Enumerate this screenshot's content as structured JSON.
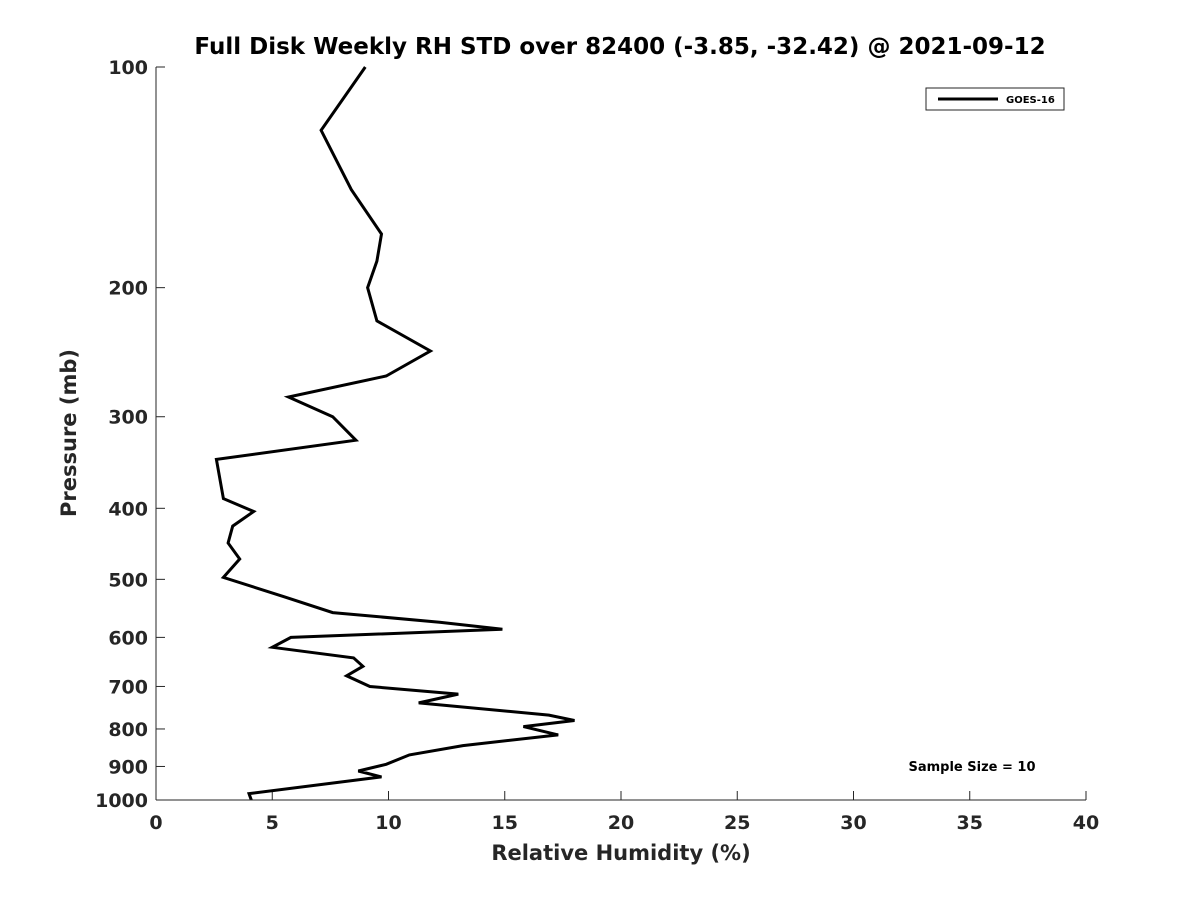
{
  "chart_data": {
    "type": "line",
    "title": "Full Disk Weekly RH STD over 82400 (-3.85, -32.42) @ 2021-09-12",
    "xlabel": "Relative Humidity (%)",
    "ylabel": "Pressure (mb)",
    "xlim": [
      0,
      40
    ],
    "ylim": [
      100,
      1000
    ],
    "y_scale": "log",
    "y_reversed": true,
    "x_ticks": [
      0,
      5,
      10,
      15,
      20,
      25,
      30,
      35,
      40
    ],
    "y_ticks": [
      100,
      200,
      300,
      400,
      500,
      600,
      700,
      800,
      900,
      1000
    ],
    "grid": false,
    "legend_position": "top-right",
    "annotation": "Sample Size = 10",
    "series": [
      {
        "name": "GOES-16",
        "color": "#000000",
        "points": [
          [
            9.0,
            100
          ],
          [
            7.1,
            122
          ],
          [
            8.4,
            147
          ],
          [
            9.7,
            169
          ],
          [
            9.5,
            184
          ],
          [
            9.1,
            200
          ],
          [
            9.5,
            222
          ],
          [
            11.8,
            244
          ],
          [
            9.9,
            264
          ],
          [
            5.7,
            282
          ],
          [
            7.6,
            300
          ],
          [
            8.6,
            323
          ],
          [
            2.6,
            343
          ],
          [
            2.9,
            388
          ],
          [
            4.2,
            404
          ],
          [
            3.3,
            423
          ],
          [
            3.1,
            446
          ],
          [
            3.6,
            469
          ],
          [
            2.9,
            497
          ],
          [
            5.5,
            528
          ],
          [
            7.6,
            555
          ],
          [
            12.2,
            572
          ],
          [
            14.9,
            585
          ],
          [
            5.8,
            600
          ],
          [
            5.0,
            619
          ],
          [
            8.5,
            640
          ],
          [
            8.9,
            657
          ],
          [
            8.2,
            677
          ],
          [
            9.2,
            700
          ],
          [
            13.0,
            717
          ],
          [
            11.3,
            737
          ],
          [
            16.9,
            766
          ],
          [
            18.0,
            779
          ],
          [
            15.8,
            794
          ],
          [
            17.3,
            815
          ],
          [
            13.2,
            843
          ],
          [
            10.9,
            868
          ],
          [
            9.9,
            894
          ],
          [
            8.7,
            913
          ],
          [
            9.7,
            930
          ],
          [
            4.0,
            980
          ],
          [
            4.1,
            1000
          ]
        ]
      }
    ]
  }
}
